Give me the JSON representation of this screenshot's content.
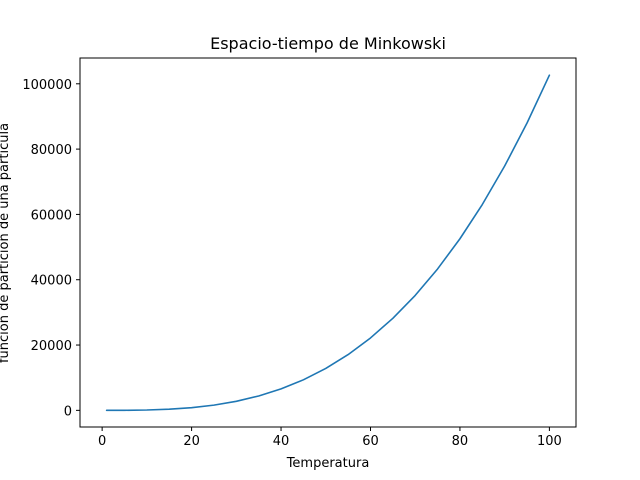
{
  "chart_data": {
    "type": "line",
    "title": "Espacio-tiempo de Minkowski",
    "xlabel": "Temperatura",
    "ylabel": "función de partición de una partícula",
    "xlim": [
      -4.95,
      105.95
    ],
    "ylim": [
      -5100,
      107900
    ],
    "xticks": [
      0,
      20,
      40,
      60,
      80,
      100
    ],
    "yticks": [
      0,
      20000,
      40000,
      60000,
      80000,
      100000
    ],
    "grid": false,
    "line_color": "#1f77b4",
    "series": [
      {
        "x": [
          1,
          5,
          10,
          15,
          20,
          25,
          30,
          35,
          40,
          45,
          50,
          55,
          60,
          65,
          70,
          75,
          80,
          85,
          90,
          95,
          100
        ],
        "values": [
          0.1,
          13,
          103,
          347,
          821,
          1604,
          2771,
          4400,
          6568,
          9352,
          12829,
          17075,
          22168,
          28185,
          35203,
          43298,
          52548,
          63030,
          74820,
          87996,
          102634
        ]
      }
    ]
  }
}
